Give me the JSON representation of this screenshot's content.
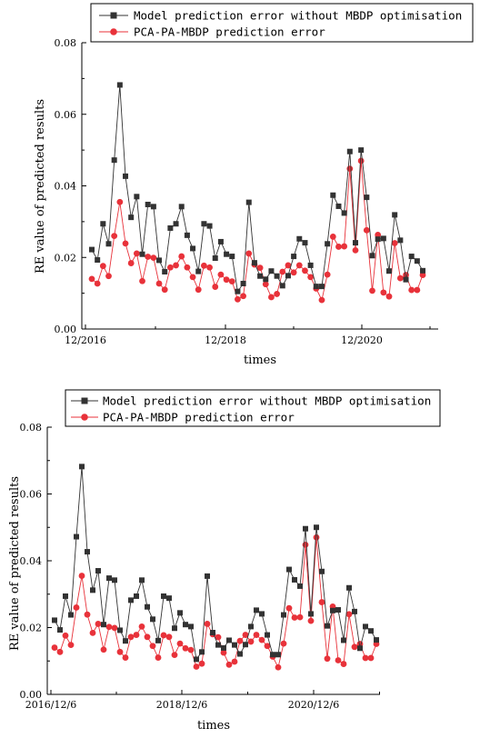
{
  "chart_data": [
    {
      "type": "line",
      "xlabel": "times",
      "ylabel": "RE value of predicted results",
      "ylim": [
        0,
        0.08
      ],
      "yticks": [
        "0.00",
        "0.02",
        "0.04",
        "0.06",
        "0.08"
      ],
      "xticks": [
        "12/2016",
        "12/2018",
        "12/2020"
      ],
      "legend_position": "top",
      "series": [
        {
          "name": "Model prediction error without MBDP optimisation",
          "color": "#333333",
          "marker": "square",
          "values": [
            0.0222,
            0.0193,
            0.0294,
            0.0238,
            0.0472,
            0.0682,
            0.0427,
            0.0312,
            0.037,
            0.0209,
            0.0348,
            0.0342,
            0.0192,
            0.016,
            0.0282,
            0.0294,
            0.0342,
            0.0262,
            0.0225,
            0.0161,
            0.0294,
            0.0288,
            0.0198,
            0.0244,
            0.0209,
            0.0203,
            0.0105,
            0.0127,
            0.0354,
            0.0185,
            0.0148,
            0.0139,
            0.0162,
            0.0148,
            0.0121,
            0.0149,
            0.0203,
            0.0252,
            0.0241,
            0.0178,
            0.0119,
            0.0119,
            0.0238,
            0.0374,
            0.0343,
            0.0324,
            0.0496,
            0.0241,
            0.05,
            0.0368,
            0.0205,
            0.0251,
            0.0253,
            0.0162,
            0.0319,
            0.0248,
            0.0138,
            0.0203,
            0.019,
            0.0163
          ]
        },
        {
          "name": "PCA-PA-MBDP prediction error",
          "color": "#e8323a",
          "marker": "circle",
          "values": [
            0.014,
            0.0127,
            0.0176,
            0.0148,
            0.026,
            0.0355,
            0.0239,
            0.0184,
            0.0211,
            0.0134,
            0.0202,
            0.0199,
            0.0127,
            0.011,
            0.0172,
            0.0178,
            0.0203,
            0.0172,
            0.0145,
            0.011,
            0.0177,
            0.0172,
            0.0118,
            0.0152,
            0.0138,
            0.0133,
            0.0083,
            0.0092,
            0.0211,
            0.018,
            0.0171,
            0.0125,
            0.0089,
            0.0098,
            0.016,
            0.0178,
            0.0158,
            0.0178,
            0.0163,
            0.0145,
            0.0113,
            0.0081,
            0.0152,
            0.0258,
            0.023,
            0.0231,
            0.0448,
            0.022,
            0.047,
            0.0276,
            0.0107,
            0.0263,
            0.0102,
            0.0091,
            0.024,
            0.0142,
            0.0151,
            0.0109,
            0.0109,
            0.0151
          ]
        }
      ]
    },
    {
      "type": "line",
      "xlabel": "times",
      "ylabel": "RE value of predicted results",
      "ylim": [
        0,
        0.08
      ],
      "yticks": [
        "0.00",
        "0.02",
        "0.04",
        "0.06",
        "0.08"
      ],
      "xticks": [
        "2016/12/6",
        "2018/12/6",
        "2020/12/6"
      ],
      "legend_position": "top",
      "series": [
        {
          "name": "Model prediction error without MBDP optimisation",
          "color": "#333333",
          "marker": "square",
          "values": [
            0.0222,
            0.0193,
            0.0294,
            0.0238,
            0.0472,
            0.0682,
            0.0427,
            0.0312,
            0.037,
            0.0209,
            0.0348,
            0.0342,
            0.0192,
            0.016,
            0.0282,
            0.0294,
            0.0342,
            0.0262,
            0.0225,
            0.0161,
            0.0294,
            0.0288,
            0.0198,
            0.0244,
            0.0209,
            0.0203,
            0.0105,
            0.0127,
            0.0354,
            0.0185,
            0.0148,
            0.0139,
            0.0162,
            0.0148,
            0.0121,
            0.0149,
            0.0203,
            0.0252,
            0.0241,
            0.0178,
            0.0119,
            0.0119,
            0.0238,
            0.0374,
            0.0343,
            0.0324,
            0.0496,
            0.0241,
            0.05,
            0.0368,
            0.0205,
            0.0251,
            0.0253,
            0.0162,
            0.0319,
            0.0248,
            0.0138,
            0.0203,
            0.019,
            0.0163
          ]
        },
        {
          "name": "PCA-PA-MBDP prediction error",
          "color": "#e8323a",
          "marker": "circle",
          "values": [
            0.014,
            0.0127,
            0.0176,
            0.0148,
            0.026,
            0.0355,
            0.0239,
            0.0184,
            0.0211,
            0.0134,
            0.0202,
            0.0199,
            0.0127,
            0.011,
            0.0172,
            0.0178,
            0.0203,
            0.0172,
            0.0145,
            0.011,
            0.0177,
            0.0172,
            0.0118,
            0.0152,
            0.0138,
            0.0133,
            0.0083,
            0.0092,
            0.0211,
            0.018,
            0.0171,
            0.0125,
            0.0089,
            0.0098,
            0.016,
            0.0178,
            0.0158,
            0.0178,
            0.0163,
            0.0145,
            0.0113,
            0.0081,
            0.0152,
            0.0258,
            0.023,
            0.0231,
            0.0448,
            0.022,
            0.047,
            0.0276,
            0.0107,
            0.0263,
            0.0102,
            0.0091,
            0.024,
            0.0142,
            0.0151,
            0.0109,
            0.0109,
            0.0151
          ]
        }
      ]
    }
  ]
}
